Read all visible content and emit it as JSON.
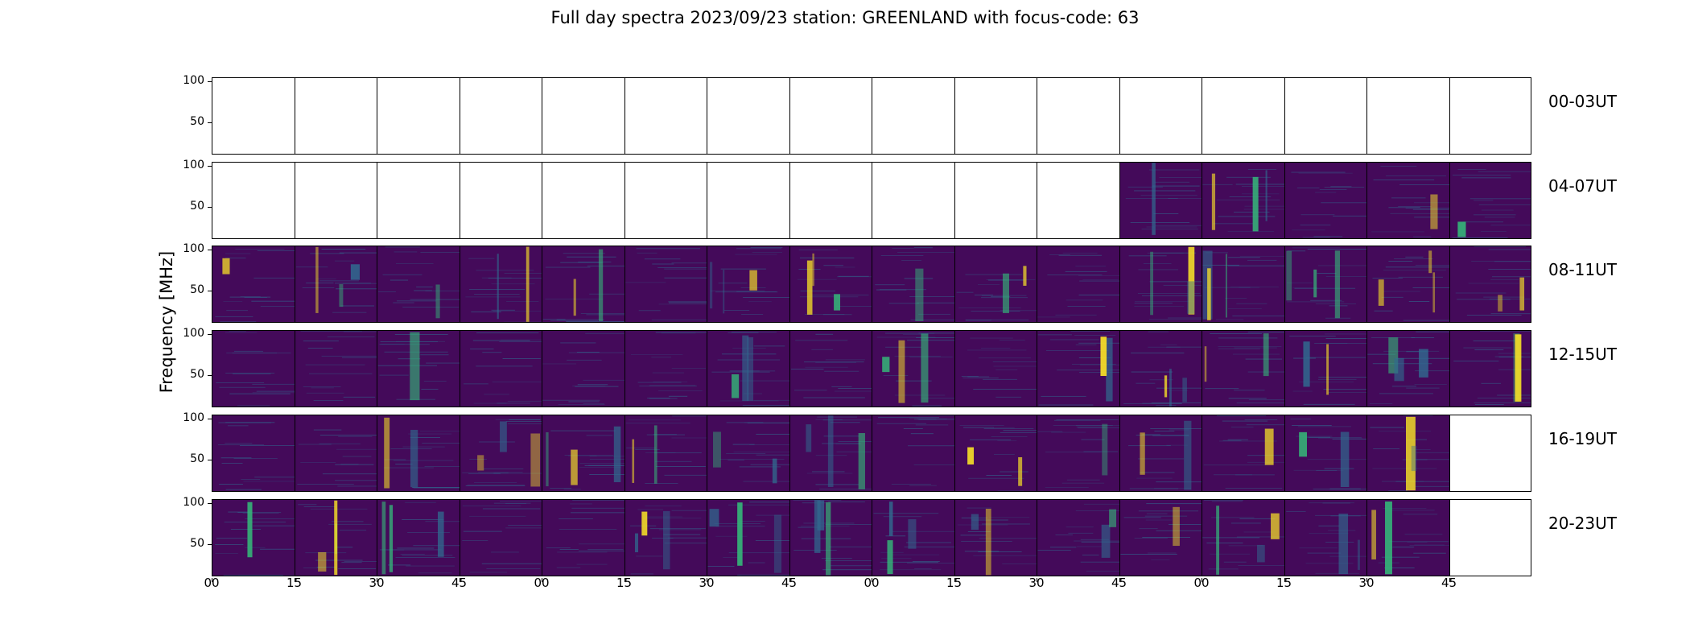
{
  "title": "Full day spectra 2023/09/23 station: GREENLAND with focus-code: 63",
  "chart_data": {
    "type": "heatmap",
    "title": "Full day spectra 2023/09/23 station: GREENLAND with focus-code: 63",
    "ylabel": "Frequency [MHz]",
    "xlabel": "",
    "ylim": [
      10,
      105
    ],
    "yticks": [
      "100",
      "50"
    ],
    "xticks": [
      "00",
      "15",
      "30",
      "45",
      "00",
      "15",
      "30",
      "45",
      "00",
      "15",
      "30",
      "45",
      "00",
      "15",
      "30",
      "45"
    ],
    "colormap": [
      "#440154",
      "#31688e",
      "#35b779",
      "#fde725"
    ],
    "rows": [
      {
        "label": "00-03UT",
        "panels": [
          0,
          0,
          0,
          0,
          0,
          0,
          0,
          0,
          0,
          0,
          0,
          0,
          0,
          0,
          0,
          0
        ]
      },
      {
        "label": "04-07UT",
        "panels": [
          0,
          0,
          0,
          0,
          0,
          0,
          0,
          0,
          0,
          0,
          0,
          1,
          1,
          1,
          1,
          1
        ]
      },
      {
        "label": "08-11UT",
        "panels": [
          1,
          1,
          1,
          1,
          1,
          1,
          1,
          1,
          1,
          1,
          1,
          1,
          1,
          1,
          1,
          1
        ]
      },
      {
        "label": "12-15UT",
        "panels": [
          1,
          1,
          1,
          1,
          1,
          1,
          1,
          1,
          1,
          1,
          1,
          1,
          1,
          1,
          1,
          1
        ]
      },
      {
        "label": "16-19UT",
        "panels": [
          1,
          1,
          1,
          1,
          1,
          1,
          1,
          1,
          1,
          1,
          1,
          1,
          1,
          1,
          1,
          0
        ]
      },
      {
        "label": "20-23UT",
        "panels": [
          1,
          1,
          1,
          1,
          1,
          1,
          1,
          1,
          1,
          1,
          1,
          1,
          1,
          1,
          1,
          0
        ]
      }
    ],
    "grid": false
  }
}
